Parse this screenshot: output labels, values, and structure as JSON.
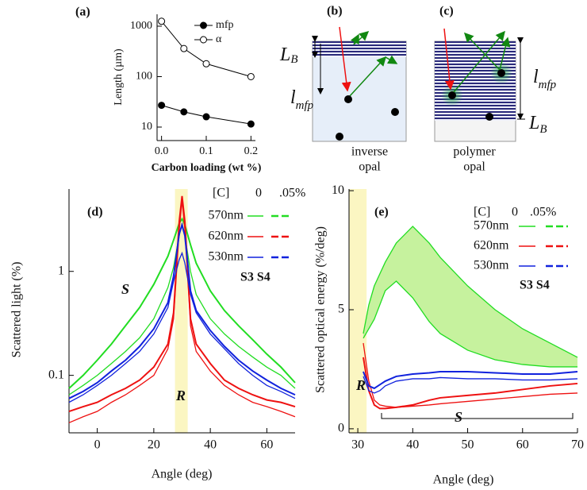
{
  "chart_data": [
    {
      "type": "line",
      "panel_label": "(a)",
      "x_label": "Carbon loading (wt %)",
      "y_label": "Length (µm)",
      "log_y": true,
      "xlim": [
        -0.01,
        0.21
      ],
      "ylim": [
        5.4,
        1720
      ],
      "xticks": [
        {
          "value": 0,
          "label": "0.0"
        },
        0.1,
        0.2
      ],
      "yticks": [
        10,
        100,
        1000
      ],
      "x": [
        0,
        0.05,
        0.1,
        0.2
      ],
      "series": [
        {
          "name": "mfp",
          "color": "#000000",
          "marker": "filled",
          "width": 1,
          "values": [
            27,
            20,
            16,
            11.5
          ]
        },
        {
          "name": "α",
          "color": "#000000",
          "marker": "open",
          "width": 1,
          "values": [
            1250,
            360,
            180,
            100
          ]
        }
      ]
    },
    {
      "type": "line",
      "panel_label": "(d)",
      "x_label": "Angle (deg)",
      "y_label": "Scattered light (%)",
      "log_y": true,
      "xlim": [
        -10,
        70
      ],
      "ylim": [
        0.028,
        6.2
      ],
      "xticks": [
        0,
        20,
        40,
        60
      ],
      "yticks": [
        0.1,
        1
      ],
      "shaded_region": [
        27.5,
        32
      ],
      "shade_color": "#fbf6c2",
      "legend_header": [
        "[C]",
        "0",
        ".05%"
      ],
      "legend_note": "S3 S4",
      "annotations": [
        "S",
        "R"
      ],
      "x": [
        -10,
        -5,
        0,
        5,
        10,
        15,
        20,
        25,
        27,
        29,
        30,
        31,
        33,
        35,
        40,
        45,
        50,
        55,
        60,
        65,
        70
      ],
      "series": [
        {
          "name": "570nm",
          "color": "#22dd22",
          "width": 1.3,
          "values": [
            0.065,
            0.08,
            0.1,
            0.13,
            0.17,
            0.23,
            0.35,
            0.7,
            1.1,
            2.2,
            2.9,
            2.2,
            1.0,
            0.6,
            0.35,
            0.25,
            0.19,
            0.15,
            0.12,
            0.1,
            0.075
          ]
        },
        {
          "color": "#22dd22",
          "width": 2,
          "values": [
            0.075,
            0.1,
            0.14,
            0.2,
            0.3,
            0.45,
            0.75,
            1.4,
            2.0,
            2.9,
            3.2,
            2.8,
            1.8,
            1.2,
            0.65,
            0.42,
            0.3,
            0.22,
            0.16,
            0.12,
            0.085
          ]
        },
        {
          "name": "620nm",
          "color": "#ee1111",
          "width": 1.3,
          "values": [
            0.035,
            0.04,
            0.045,
            0.055,
            0.065,
            0.08,
            0.1,
            0.18,
            0.35,
            2.5,
            4.8,
            2.5,
            0.3,
            0.17,
            0.11,
            0.08,
            0.065,
            0.055,
            0.05,
            0.045,
            0.04
          ]
        },
        {
          "color": "#ee1111",
          "width": 2,
          "values": [
            0.045,
            0.05,
            0.055,
            0.065,
            0.075,
            0.09,
            0.12,
            0.2,
            0.4,
            3.0,
            5.3,
            3.0,
            0.35,
            0.2,
            0.13,
            0.09,
            0.075,
            0.065,
            0.058,
            0.055,
            0.05
          ]
        },
        {
          "name": "530nm",
          "color": "#1122dd",
          "width": 1.3,
          "values": [
            0.055,
            0.065,
            0.08,
            0.1,
            0.13,
            0.17,
            0.25,
            0.45,
            0.8,
            1.3,
            1.5,
            1.2,
            0.6,
            0.4,
            0.25,
            0.18,
            0.13,
            0.1,
            0.08,
            0.07,
            0.06
          ]
        },
        {
          "color": "#1122dd",
          "width": 2,
          "values": [
            0.06,
            0.07,
            0.085,
            0.11,
            0.14,
            0.19,
            0.28,
            0.5,
            0.9,
            2.3,
            2.8,
            2.2,
            0.65,
            0.42,
            0.27,
            0.19,
            0.14,
            0.11,
            0.09,
            0.075,
            0.065
          ]
        }
      ]
    },
    {
      "type": "line",
      "panel_label": "(e)",
      "x_label": "Angle (deg)",
      "y_label": "Scattered optical energy (%/deg)",
      "log_y": false,
      "xlim": [
        28.4,
        70
      ],
      "ylim": [
        -0.17,
        10.07
      ],
      "xticks": [
        30,
        40,
        50,
        60,
        70
      ],
      "yticks": [
        0,
        5,
        10
      ],
      "shaded_region": [
        28.4,
        31.6
      ],
      "shade_color": "#fbf6c2",
      "legend_header": [
        "[C]",
        "0",
        ".05%"
      ],
      "legend_note": "S3 S4",
      "annotations": [
        "R",
        "S"
      ],
      "x": [
        31,
        32,
        33,
        34,
        35,
        37,
        40,
        43,
        45,
        50,
        55,
        60,
        65,
        70
      ],
      "series": [
        {
          "name": "570nm",
          "color": "#22dd22",
          "width": 1.3,
          "fill_color": "#c6f29e",
          "values": [
            4.0,
            5.2,
            6.0,
            6.5,
            7.0,
            7.8,
            8.5,
            7.8,
            7.2,
            6.0,
            5.0,
            4.2,
            3.6,
            3.0
          ]
        },
        {
          "color": "#22dd22",
          "width": 1.3,
          "values": [
            3.8,
            4.2,
            4.6,
            5.2,
            5.8,
            6.2,
            5.5,
            4.5,
            4.0,
            3.3,
            2.9,
            2.7,
            2.6,
            2.6
          ]
        },
        {
          "name": "620nm",
          "color": "#ee1111",
          "width": 1.3,
          "values": [
            3.6,
            2.0,
            1.2,
            1.0,
            0.95,
            0.9,
            0.95,
            1.0,
            1.05,
            1.15,
            1.25,
            1.35,
            1.45,
            1.5
          ]
        },
        {
          "color": "#ee1111",
          "width": 2,
          "values": [
            3.0,
            1.6,
            1.0,
            0.85,
            0.85,
            0.9,
            1.0,
            1.2,
            1.3,
            1.4,
            1.5,
            1.65,
            1.8,
            1.9
          ]
        },
        {
          "name": "530nm",
          "color": "#1122dd",
          "width": 1.3,
          "values": [
            2.2,
            1.6,
            1.5,
            1.6,
            1.8,
            2.0,
            2.1,
            2.1,
            2.15,
            2.1,
            2.1,
            2.05,
            2.05,
            2.1
          ]
        },
        {
          "color": "#1122dd",
          "width": 2,
          "values": [
            2.4,
            1.8,
            1.7,
            1.85,
            2.0,
            2.2,
            2.3,
            2.35,
            2.4,
            2.4,
            2.35,
            2.3,
            2.3,
            2.4
          ]
        }
      ]
    }
  ],
  "diagrams": [
    {
      "label": "(b)",
      "caption": [
        "inverse",
        "opal"
      ],
      "length_labels": [
        {
          "main": "L",
          "sub": "B"
        },
        {
          "main": "l",
          "sub": "mfp"
        }
      ]
    },
    {
      "label": "(c)",
      "caption": [
        "polymer",
        "opal"
      ],
      "length_labels": [
        {
          "main": "l",
          "sub": "mfp"
        },
        {
          "main": "L",
          "sub": "B"
        }
      ]
    }
  ]
}
